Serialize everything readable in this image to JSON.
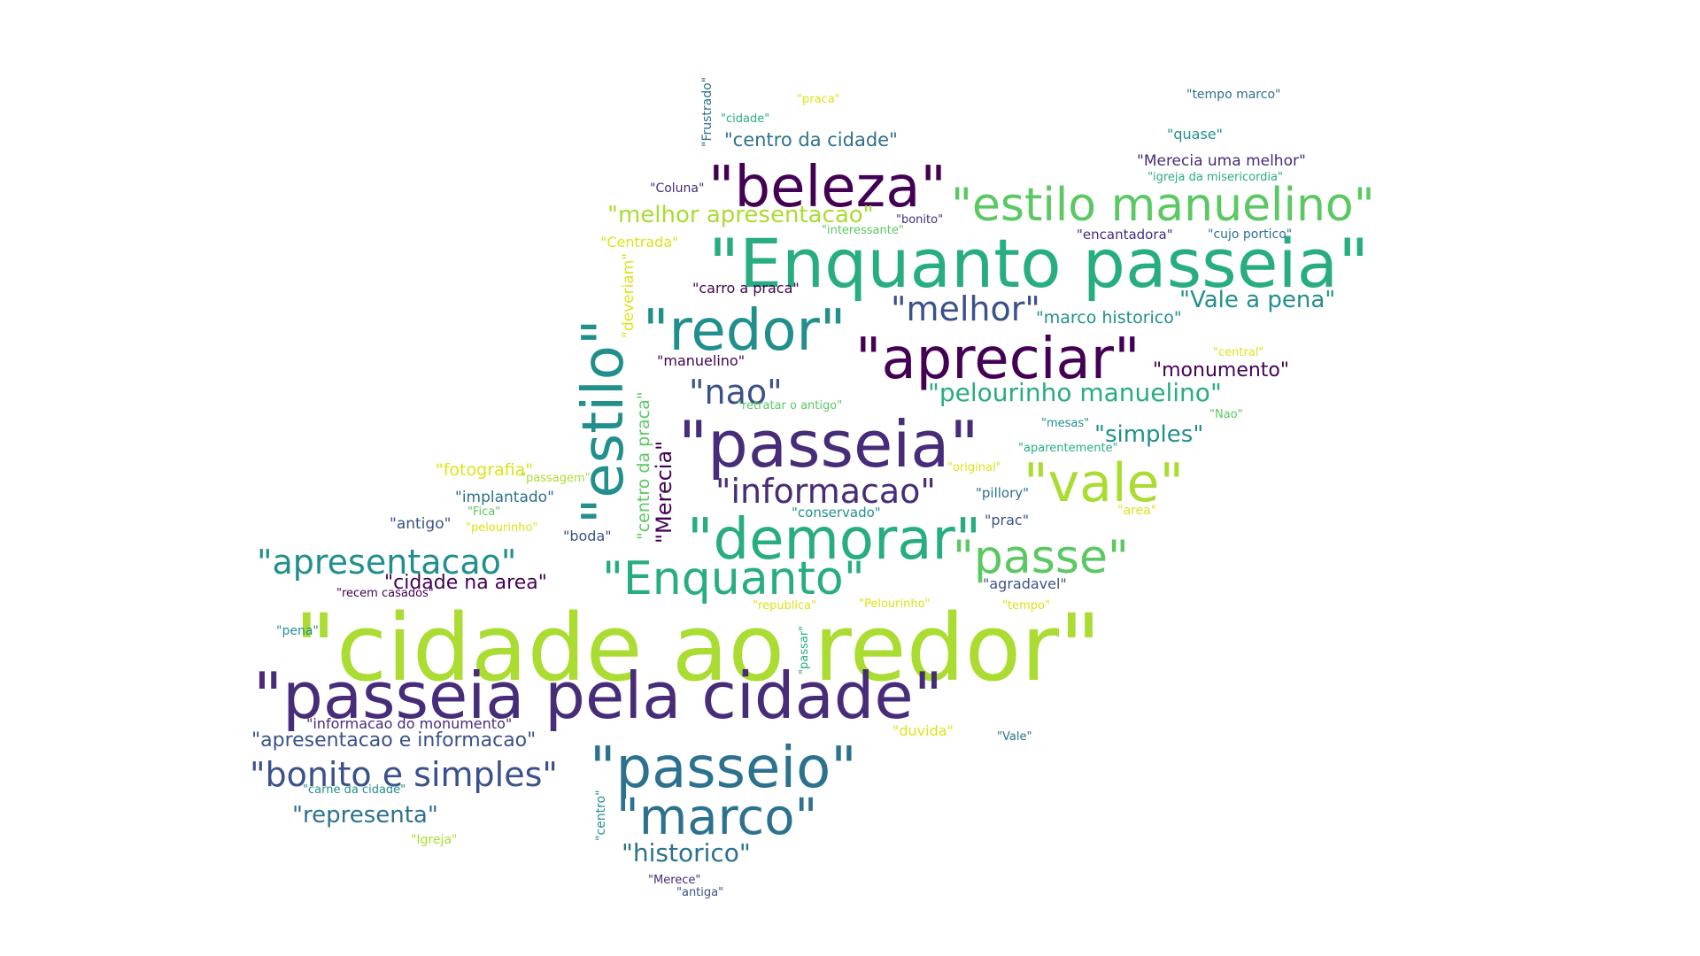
{
  "palette": {
    "dark_purple": "#440154",
    "purple": "#472c7a",
    "indigo": "#3b518b",
    "blue": "#2c718e",
    "teal": "#21908d",
    "green_teal": "#27ad81",
    "green": "#5cc863",
    "lime": "#aadc32",
    "yellow": "#dde318"
  },
  "words": [
    {
      "text": "\"cidade ao redor\"",
      "color": "lime"
    },
    {
      "text": "\"passeia pela cidade\"",
      "color": "purple"
    },
    {
      "text": "\"Enquanto passeia\"",
      "color": "green_teal"
    },
    {
      "text": "\"passeia\"",
      "color": "purple"
    },
    {
      "text": "\"passeio\"",
      "color": "blue"
    },
    {
      "text": "\"beleza\"",
      "color": "dark_purple"
    },
    {
      "text": "\"estilo manuelino\"",
      "color": "green"
    },
    {
      "text": "\"apreciar\"",
      "color": "dark_purple"
    },
    {
      "text": "\"redor\"",
      "color": "teal"
    },
    {
      "text": "\"demorar\"",
      "color": "green_teal"
    },
    {
      "text": "\"estilo\"",
      "color": "teal"
    },
    {
      "text": "\"vale\"",
      "color": "lime"
    },
    {
      "text": "\"marco\"",
      "color": "blue"
    },
    {
      "text": "\"Enquanto\"",
      "color": "green_teal"
    },
    {
      "text": "\"passe\"",
      "color": "green"
    },
    {
      "text": "\"bonito e simples\"",
      "color": "indigo"
    },
    {
      "text": "\"apresentacao\"",
      "color": "teal"
    },
    {
      "text": "\"informacao\"",
      "color": "purple"
    },
    {
      "text": "\"melhor\"",
      "color": "indigo"
    },
    {
      "text": "\"nao\"",
      "color": "indigo"
    },
    {
      "text": "\"historico\"",
      "color": "blue"
    },
    {
      "text": "\"representa\"",
      "color": "blue"
    },
    {
      "text": "\"Vale a pena\"",
      "color": "teal"
    },
    {
      "text": "\"pelourinho manuelino\"",
      "color": "green_teal"
    },
    {
      "text": "\"melhor apresentacao\"",
      "color": "lime"
    },
    {
      "text": "\"simples\"",
      "color": "teal"
    },
    {
      "text": "\"apresentacao e informacao\"",
      "color": "indigo"
    },
    {
      "text": "\"monumento\"",
      "color": "dark_purple"
    },
    {
      "text": "\"cidade na area\"",
      "color": "dark_purple"
    },
    {
      "text": "\"centro da cidade\"",
      "color": "blue"
    },
    {
      "text": "\"fotografia\"",
      "color": "yellow"
    },
    {
      "text": "\"centro da praca\"",
      "color": "green"
    },
    {
      "text": "\"Merecia\"",
      "color": "dark_purple"
    },
    {
      "text": "\"marco historico\"",
      "color": "teal"
    },
    {
      "text": "\"implantado\"",
      "color": "blue"
    },
    {
      "text": "\"antigo\"",
      "color": "indigo"
    },
    {
      "text": "\"Merecia uma melhor\"",
      "color": "purple"
    },
    {
      "text": "\"informacao do monumento\"",
      "color": "purple"
    },
    {
      "text": "\"deveriam\"",
      "color": "yellow"
    },
    {
      "text": "\"carro a praca\"",
      "color": "dark_purple"
    },
    {
      "text": "\"manuelino\"",
      "color": "dark_purple"
    },
    {
      "text": "\"agradavel\"",
      "color": "indigo"
    },
    {
      "text": "\"boda\"",
      "color": "indigo"
    },
    {
      "text": "\"quase\"",
      "color": "teal"
    },
    {
      "text": "\"Centrada\"",
      "color": "yellow"
    },
    {
      "text": "\"encantadora\"",
      "color": "purple"
    },
    {
      "text": "\"duvida\"",
      "color": "yellow"
    },
    {
      "text": "\"conservado\"",
      "color": "teal"
    },
    {
      "text": "\"prac\"",
      "color": "indigo"
    },
    {
      "text": "\"pillory\"",
      "color": "blue"
    },
    {
      "text": "\"Frustrado\"",
      "color": "blue"
    },
    {
      "text": "\"tempo marco\"",
      "color": "blue"
    },
    {
      "text": "\"cujo portico\"",
      "color": "blue"
    },
    {
      "text": "\"Coluna\"",
      "color": "purple"
    },
    {
      "text": "\"centro\"",
      "color": "teal"
    },
    {
      "text": "\"recem casados\"",
      "color": "dark_purple"
    },
    {
      "text": "\"pena\"",
      "color": "teal"
    },
    {
      "text": "\"area\"",
      "color": "yellow"
    },
    {
      "text": "\"Igreja\"",
      "color": "lime"
    },
    {
      "text": "\"bonito\"",
      "color": "purple"
    },
    {
      "text": "\"praca\"",
      "color": "yellow"
    },
    {
      "text": "\"cidade\"",
      "color": "green_teal"
    },
    {
      "text": "\"igreja da misericordia\"",
      "color": "green_teal"
    },
    {
      "text": "\"interessante\"",
      "color": "green"
    },
    {
      "text": "\"central\"",
      "color": "yellow"
    },
    {
      "text": "\"retratar o antigo\"",
      "color": "green"
    },
    {
      "text": "\"mesas\"",
      "color": "teal"
    },
    {
      "text": "\"Nao\"",
      "color": "green"
    },
    {
      "text": "\"aparentemente\"",
      "color": "green_teal"
    },
    {
      "text": "\"original\"",
      "color": "yellow"
    },
    {
      "text": "\"passagem\"",
      "color": "lime"
    },
    {
      "text": "\"Fica\"",
      "color": "green"
    },
    {
      "text": "\"pelourinho\"",
      "color": "yellow"
    },
    {
      "text": "\"republica\"",
      "color": "yellow"
    },
    {
      "text": "\"Pelourinho\"",
      "color": "yellow"
    },
    {
      "text": "\"tempo\"",
      "color": "yellow"
    },
    {
      "text": "\"passar\"",
      "color": "green_teal"
    },
    {
      "text": "\"Vale\"",
      "color": "blue"
    },
    {
      "text": "\"carne da cidade\"",
      "color": "teal"
    },
    {
      "text": "\"Merece\"",
      "color": "purple"
    },
    {
      "text": "\"antiga\"",
      "color": "indigo"
    }
  ]
}
